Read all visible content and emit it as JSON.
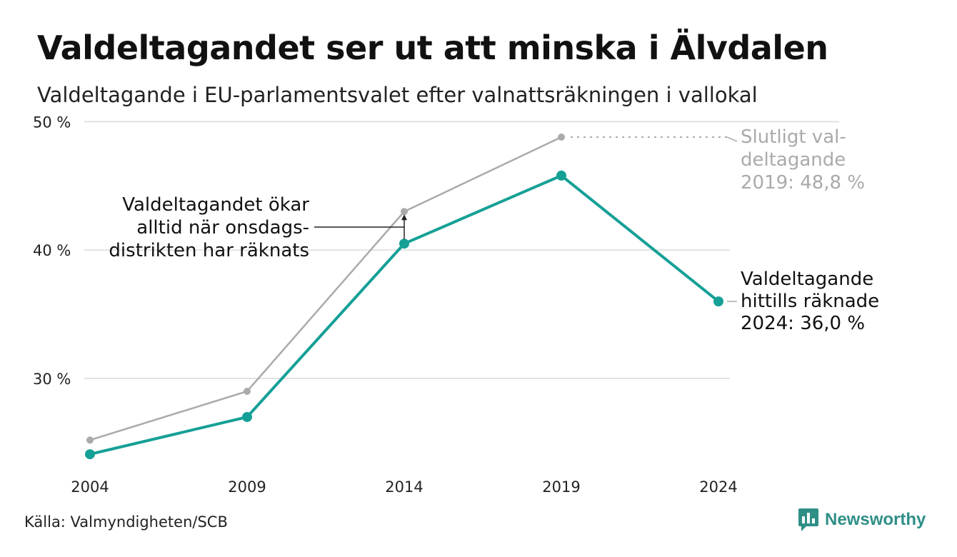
{
  "header": {
    "title": "Valdeltagandet ser ut att minska i Älvdalen",
    "subtitle": "Valdeltagande i EU-parlamentsvalet efter valnattsräkningen i vallokal"
  },
  "footer": {
    "source": "Källa: Valmyndigheten/SCB",
    "brand": "Newsworthy",
    "brand_color": "#2f8f87"
  },
  "chart_data": {
    "type": "line",
    "title": "Valdeltagandet ser ut att minska i Älvdalen",
    "subtitle": "Valdeltagande i EU-parlamentsvalet efter valnattsräkningen i vallokal",
    "x": [
      2004,
      2009,
      2014,
      2019,
      2024
    ],
    "x_tick_labels": [
      "2004",
      "2009",
      "2014",
      "2019",
      "2024"
    ],
    "y_ticks": [
      30,
      40,
      50
    ],
    "y_tick_labels": [
      "30 %",
      "40 %",
      "50 %"
    ],
    "ylim": [
      23.6,
      50
    ],
    "grid": true,
    "series": [
      {
        "values": [
          25.2,
          29.0,
          43.0,
          48.8,
          null
        ],
        "color": "#aaaaaa"
      },
      {
        "values": [
          24.1,
          27.0,
          40.5,
          45.8,
          36.0
        ],
        "color": "#15a096"
      }
    ],
    "annotations": [
      {
        "target": "final-2019",
        "lines": [
          "Slutligt val-",
          "deltagande",
          "2019: 48,8 %"
        ],
        "color": "#aaaaaa"
      },
      {
        "target": "counted-2024",
        "lines": [
          "Valdeltagande",
          "hittills räknade",
          "2024: 36,0 %"
        ],
        "color": "#111111"
      },
      {
        "target": "gap-2014",
        "lines": [
          "Valdeltagandet ökar",
          "alltid när onsdags-",
          "distrikten har räknats"
        ],
        "color": "#111111"
      }
    ]
  }
}
